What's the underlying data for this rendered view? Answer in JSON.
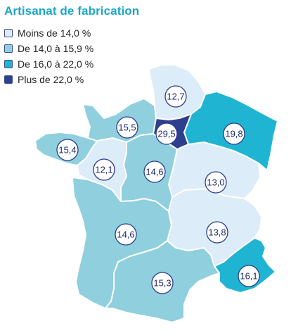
{
  "title": "Artisanat de fabrication",
  "legend": [
    {
      "label": "Moins de 14,0 %",
      "color": "#dcecf8"
    },
    {
      "label": "De 14,0 à 15,9 %",
      "color": "#8fcfde"
    },
    {
      "label": "De 16,0 à 22,0 %",
      "color": "#1fb5d2"
    },
    {
      "label": "Plus de 22,0 %",
      "color": "#2e3f8f"
    }
  ],
  "regions": [
    {
      "id": "hauts-de-france",
      "value": "12,7",
      "color": "#dcecf8"
    },
    {
      "id": "normandie",
      "value": "15,5",
      "color": "#8fcfde"
    },
    {
      "id": "ile-de-france",
      "value": "29,5",
      "color": "#2e3f8f"
    },
    {
      "id": "grand-est",
      "value": "19,8",
      "color": "#1fb5d2"
    },
    {
      "id": "bretagne",
      "value": "15,4",
      "color": "#8fcfde"
    },
    {
      "id": "pays-de-la-loire",
      "value": "12,1",
      "color": "#dcecf8"
    },
    {
      "id": "centre-val-de-loire",
      "value": "14,6",
      "color": "#8fcfde"
    },
    {
      "id": "bourgogne-franche-comte",
      "value": "13,0",
      "color": "#dcecf8"
    },
    {
      "id": "nouvelle-aquitaine",
      "value": "14,6",
      "color": "#8fcfde"
    },
    {
      "id": "auvergne-rhone-alpes",
      "value": "13,8",
      "color": "#dcecf8"
    },
    {
      "id": "occitanie",
      "value": "15,3",
      "color": "#8fcfde"
    },
    {
      "id": "provence-alpes-cote-d-azur",
      "value": "16,1",
      "color": "#1fb5d2"
    }
  ]
}
